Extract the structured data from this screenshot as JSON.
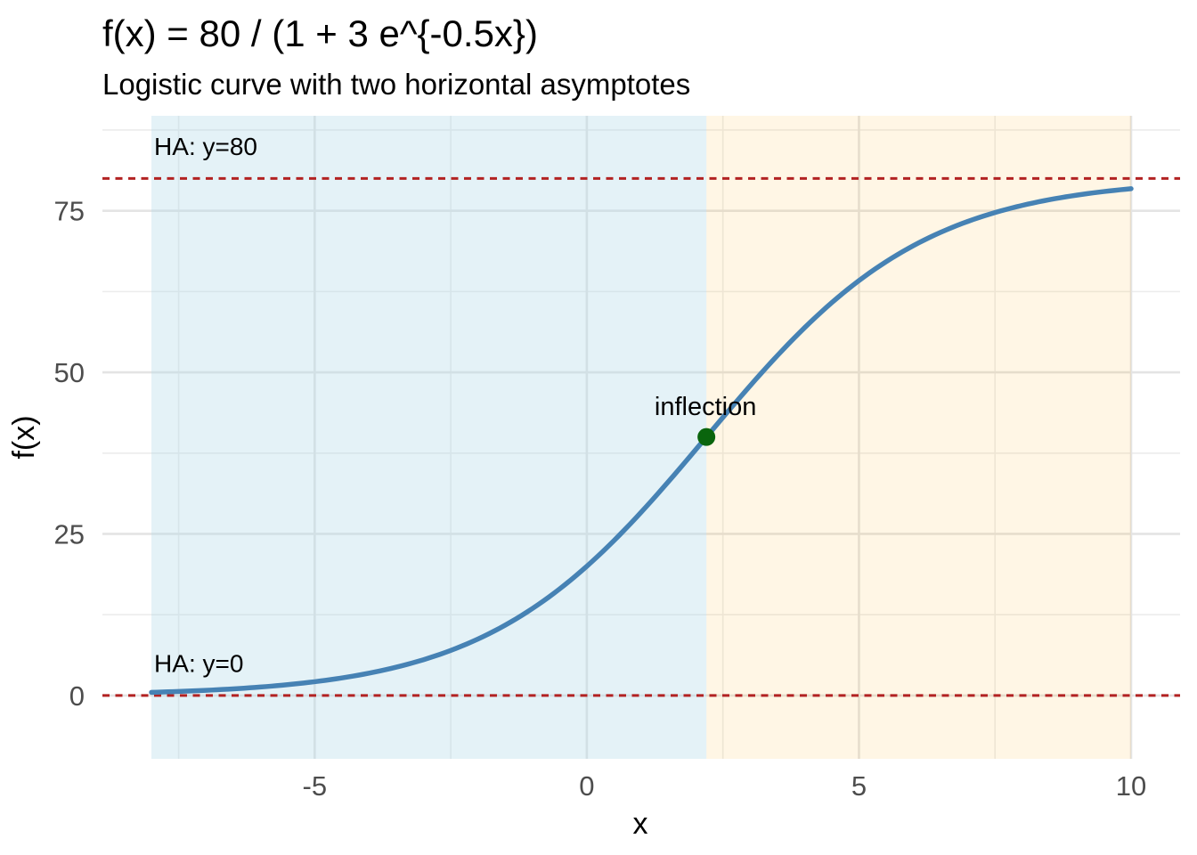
{
  "header": {
    "title": "f(x) = 80 / (1 + 3 e^{-0.5x})",
    "subtitle": "Logistic curve with two horizontal asymptotes"
  },
  "chart_data": {
    "type": "line",
    "title": "f(x) = 80 / (1 + 3 e^{-0.5x})",
    "subtitle": "Logistic curve with two horizontal asymptotes",
    "xlabel": "x",
    "ylabel": "f(x)",
    "grid": true,
    "legend": false,
    "x_ticks": [
      -5,
      0,
      5,
      10
    ],
    "y_ticks": [
      0,
      25,
      50,
      75
    ],
    "x_minor_ticks": [
      -7.5,
      -2.5,
      2.5,
      7.5
    ],
    "y_minor_ticks": [
      12.5,
      37.5,
      62.5,
      87.5
    ],
    "x_range": [
      -8.9,
      10.9
    ],
    "y_range": [
      -9.8,
      89.7
    ],
    "function": {
      "formula": "f(x) = 80 / (1 + 3*exp(-0.5*x))",
      "L": 80,
      "C": 3,
      "k": 0.5,
      "x_min": -8,
      "x_max": 10
    },
    "series": [
      {
        "name": "f(x)",
        "points": [
          [
            -8,
            0.49
          ],
          [
            -7.5,
            0.62
          ],
          [
            -7,
            0.8
          ],
          [
            -6.5,
            1.02
          ],
          [
            -6,
            1.31
          ],
          [
            -5.5,
            1.67
          ],
          [
            -5,
            2.13
          ],
          [
            -4.5,
            2.71
          ],
          [
            -4,
            3.45
          ],
          [
            -3.5,
            4.38
          ],
          [
            -3,
            5.54
          ],
          [
            -2.5,
            6.97
          ],
          [
            -2,
            8.74
          ],
          [
            -1.5,
            10.88
          ],
          [
            -1,
            13.45
          ],
          [
            -0.5,
            16.49
          ],
          [
            0,
            20
          ],
          [
            0.5,
            23.98
          ],
          [
            1,
            28.37
          ],
          [
            1.5,
            33.1
          ],
          [
            2,
            38.03
          ],
          [
            2.5,
            43.02
          ],
          [
            3,
            47.92
          ],
          [
            3.5,
            52.59
          ],
          [
            4,
            56.9
          ],
          [
            4.5,
            60.78
          ],
          [
            5,
            64.19
          ],
          [
            5.5,
            67.13
          ],
          [
            6,
            69.6
          ],
          [
            6.5,
            71.66
          ],
          [
            7,
            73.35
          ],
          [
            7.5,
            74.73
          ],
          [
            8,
            75.83
          ],
          [
            8.5,
            76.72
          ],
          [
            9,
            77.42
          ],
          [
            9.5,
            77.98
          ],
          [
            10,
            78.41
          ]
        ]
      }
    ],
    "asymptotes": [
      {
        "y": 80,
        "label": "HA: y=80",
        "label_x": -7.95,
        "label_y": 85
      },
      {
        "y": 0,
        "label": "HA: y=0",
        "label_x": -7.95,
        "label_y": 5
      }
    ],
    "inflection": {
      "x": 2.197,
      "y": 40,
      "label": "inflection",
      "label_x": 2.18,
      "label_y": 43.4
    },
    "regions": [
      {
        "x0": -8,
        "x1": 2.197,
        "fill": "#ADD8E6",
        "opacity": 0.33
      },
      {
        "x0": 2.197,
        "x1": 10,
        "fill": "#FFA500",
        "opacity": 0.1
      }
    ],
    "colors": {
      "curve": "#4682B4",
      "asymptote_line": "#B22222",
      "inflection_point": "#0A650D",
      "grid_major": "#E4E4E4",
      "grid_minor": "#ECECEC",
      "tick_text": "#4d4d4d",
      "background": "#FFFFFF"
    }
  }
}
